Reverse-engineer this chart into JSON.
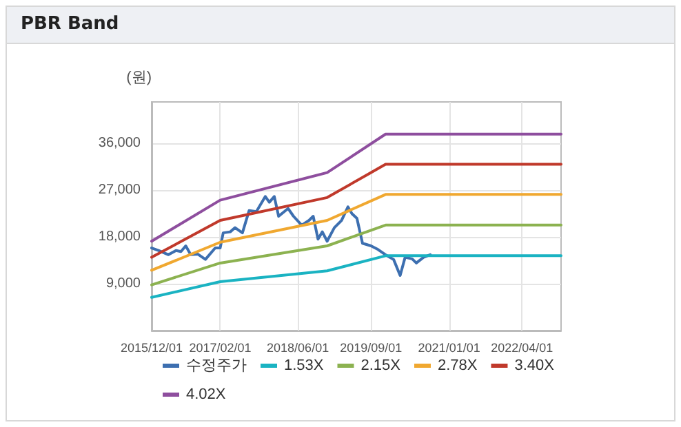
{
  "chart_data": {
    "type": "line",
    "title": "PBR Band",
    "ylabel": "(원)",
    "xlim": [
      "2015-12-01",
      "2022-12-01"
    ],
    "xticks": [
      {
        "value": "2015-12-01",
        "label": "2015/12/01"
      },
      {
        "value": "2017-02-01",
        "label": "2017/02/01"
      },
      {
        "value": "2018-06-01",
        "label": "2018/06/01"
      },
      {
        "value": "2019-09-01",
        "label": "2019/09/01"
      },
      {
        "value": "2021-01-01",
        "label": "2021/01/01"
      },
      {
        "value": "2022-04-01",
        "label": "2022/04/01"
      }
    ],
    "ylim": [
      0,
      44000
    ],
    "yticks": [
      {
        "value": 9000,
        "label": "9,000"
      },
      {
        "value": 18000,
        "label": "18,000"
      },
      {
        "value": 27000,
        "label": "27,000"
      },
      {
        "value": 36000,
        "label": "36,000"
      }
    ],
    "grid": true,
    "legend": "bottom",
    "marker": "none",
    "line_style": "solid",
    "series": [
      {
        "name": "수정주가",
        "color": "#3d6fb0",
        "x": [
          "2015-12-01",
          "2016-01-15",
          "2016-03-15",
          "2016-05-01",
          "2016-06-01",
          "2016-07-01",
          "2016-08-01",
          "2016-09-15",
          "2016-11-01",
          "2017-01-01",
          "2017-02-01",
          "2017-02-20",
          "2017-04-05",
          "2017-05-05",
          "2017-06-20",
          "2017-08-01",
          "2017-09-15",
          "2017-11-10",
          "2017-12-05",
          "2018-01-05",
          "2018-02-01",
          "2018-04-01",
          "2018-05-05",
          "2018-06-25",
          "2018-08-10",
          "2018-09-05",
          "2018-10-05",
          "2018-11-01",
          "2018-12-01",
          "2019-01-15",
          "2019-03-01",
          "2019-04-10",
          "2019-05-05",
          "2019-06-05",
          "2019-07-10",
          "2019-09-01",
          "2019-10-15",
          "2019-12-10",
          "2020-01-20",
          "2020-03-01",
          "2020-04-01",
          "2020-05-15",
          "2020-06-10",
          "2020-07-25",
          "2020-09-05"
        ],
        "values": [
          15900,
          15400,
          14600,
          15400,
          15200,
          16300,
          14600,
          14700,
          13700,
          15900,
          15900,
          18800,
          19000,
          19800,
          18800,
          23100,
          22900,
          25800,
          24700,
          25800,
          22000,
          23500,
          22000,
          20300,
          21200,
          22000,
          17600,
          19000,
          17200,
          19800,
          21200,
          23800,
          22500,
          21600,
          16800,
          16300,
          15600,
          14400,
          13700,
          10600,
          14100,
          13800,
          13000,
          14100,
          14600
        ]
      },
      {
        "name": "1.53X",
        "color": "#1ab3c2",
        "x": [
          "2015-12-01",
          "2017-02-01",
          "2018-12-01",
          "2019-12-01",
          "2022-12-01"
        ],
        "values": [
          6400,
          9400,
          11500,
          14400,
          14400
        ]
      },
      {
        "name": "2.15X",
        "color": "#8cb250",
        "x": [
          "2015-12-01",
          "2017-02-01",
          "2018-12-01",
          "2019-12-01",
          "2022-12-01"
        ],
        "values": [
          8800,
          13000,
          16300,
          20300,
          20300
        ]
      },
      {
        "name": "2.78X",
        "color": "#f0a830",
        "x": [
          "2015-12-01",
          "2017-02-01",
          "2018-12-01",
          "2019-12-01",
          "2022-12-01"
        ],
        "values": [
          11600,
          17000,
          21200,
          26200,
          26200
        ]
      },
      {
        "name": "3.40X",
        "color": "#c0392b",
        "x": [
          "2015-12-01",
          "2017-02-01",
          "2018-12-01",
          "2019-12-01",
          "2022-12-01"
        ],
        "values": [
          14100,
          21200,
          25600,
          32000,
          32000
        ]
      },
      {
        "name": "4.02X",
        "color": "#8e4e9e",
        "x": [
          "2015-12-01",
          "2017-02-01",
          "2018-12-01",
          "2019-12-01",
          "2022-12-01"
        ],
        "values": [
          17200,
          25100,
          30400,
          37800,
          37800
        ]
      }
    ]
  }
}
